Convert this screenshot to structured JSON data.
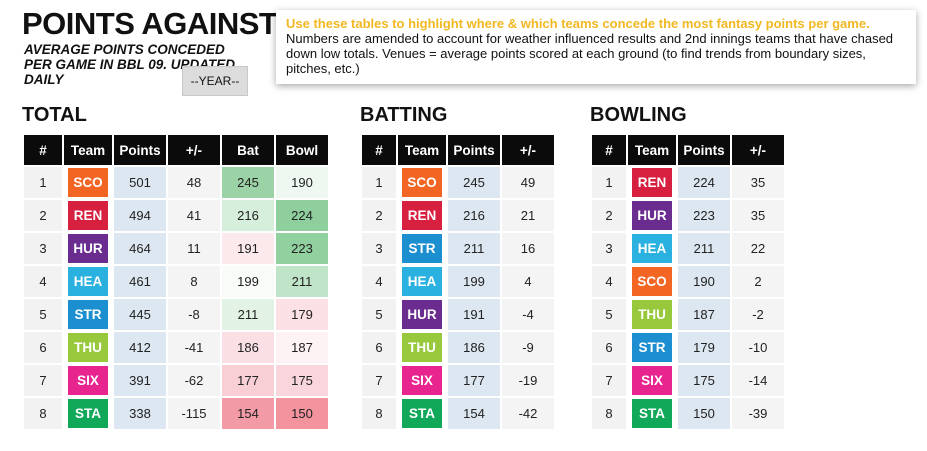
{
  "header": {
    "title": "POINTS AGAINST",
    "subtitle": "AVERAGE POINTS CONCEDED PER GAME IN BBL 09. UPDATED DAILY",
    "year_select": "--YEAR--"
  },
  "info": {
    "highlight": "Use these tables to highlight where & which teams concede the most fantasy points per game.",
    "body": "Numbers are amended to account for weather influenced results and 2nd innings teams that have chased down low totals. Venues = average points scored at each ground (to find trends from boundary sizes, pitches, etc.)"
  },
  "team_colors": {
    "SCO": "#f26522",
    "REN": "#d71f3f",
    "HUR": "#6a2c8f",
    "HEA": "#2ab1e0",
    "STR": "#1c8fd1",
    "THU": "#98c93c",
    "SIX": "#e8248f",
    "STA": "#12a85a"
  },
  "total": {
    "heading": "TOTAL",
    "columns": [
      "#",
      "Team",
      "Points",
      "+/-",
      "Bat",
      "Bowl"
    ],
    "rows": [
      {
        "rank": "1",
        "team": "SCO",
        "points": "501",
        "diff": "48",
        "bat": "245",
        "bowl": "190",
        "bat_color": "#9bd3a6",
        "bowl_color": "#eef8f1"
      },
      {
        "rank": "2",
        "team": "REN",
        "points": "494",
        "diff": "41",
        "bat": "216",
        "bowl": "224",
        "bat_color": "#d6eedc",
        "bowl_color": "#8fcf9d"
      },
      {
        "rank": "3",
        "team": "HUR",
        "points": "464",
        "diff": "11",
        "bat": "191",
        "bowl": "223",
        "bat_color": "#fbe9ec",
        "bowl_color": "#91d09f"
      },
      {
        "rank": "4",
        "team": "HEA",
        "points": "461",
        "diff": "8",
        "bat": "199",
        "bowl": "211",
        "bat_color": "#f9fbf9",
        "bowl_color": "#bfe4c8"
      },
      {
        "rank": "5",
        "team": "STR",
        "points": "445",
        "diff": "-8",
        "bat": "211",
        "bowl": "179",
        "bat_color": "#e2f3e6",
        "bowl_color": "#fbe0e4"
      },
      {
        "rank": "6",
        "team": "THU",
        "points": "412",
        "diff": "-41",
        "bat": "186",
        "bowl": "187",
        "bat_color": "#fae0e4",
        "bowl_color": "#fdf3f4"
      },
      {
        "rank": "7",
        "team": "SIX",
        "points": "391",
        "diff": "-62",
        "bat": "177",
        "bowl": "175",
        "bat_color": "#f7cfd5",
        "bowl_color": "#f9d6dc"
      },
      {
        "rank": "8",
        "team": "STA",
        "points": "338",
        "diff": "-115",
        "bat": "154",
        "bowl": "150",
        "bat_color": "#f29aa5",
        "bowl_color": "#f2939e"
      }
    ]
  },
  "batting": {
    "heading": "BATTING",
    "columns": [
      "#",
      "Team",
      "Points",
      "+/-"
    ],
    "rows": [
      {
        "rank": "1",
        "team": "SCO",
        "points": "245",
        "diff": "49"
      },
      {
        "rank": "2",
        "team": "REN",
        "points": "216",
        "diff": "21"
      },
      {
        "rank": "3",
        "team": "STR",
        "points": "211",
        "diff": "16"
      },
      {
        "rank": "4",
        "team": "HEA",
        "points": "199",
        "diff": "4"
      },
      {
        "rank": "5",
        "team": "HUR",
        "points": "191",
        "diff": "-4"
      },
      {
        "rank": "6",
        "team": "THU",
        "points": "186",
        "diff": "-9"
      },
      {
        "rank": "7",
        "team": "SIX",
        "points": "177",
        "diff": "-19"
      },
      {
        "rank": "8",
        "team": "STA",
        "points": "154",
        "diff": "-42"
      }
    ]
  },
  "bowling": {
    "heading": "BOWLING",
    "columns": [
      "#",
      "Team",
      "Points",
      "+/-"
    ],
    "rows": [
      {
        "rank": "1",
        "team": "REN",
        "points": "224",
        "diff": "35"
      },
      {
        "rank": "2",
        "team": "HUR",
        "points": "223",
        "diff": "35"
      },
      {
        "rank": "3",
        "team": "HEA",
        "points": "211",
        "diff": "22"
      },
      {
        "rank": "4",
        "team": "SCO",
        "points": "190",
        "diff": "2"
      },
      {
        "rank": "5",
        "team": "THU",
        "points": "187",
        "diff": "-2"
      },
      {
        "rank": "6",
        "team": "STR",
        "points": "179",
        "diff": "-10"
      },
      {
        "rank": "7",
        "team": "SIX",
        "points": "175",
        "diff": "-14"
      },
      {
        "rank": "8",
        "team": "STA",
        "points": "150",
        "diff": "-39"
      }
    ]
  }
}
